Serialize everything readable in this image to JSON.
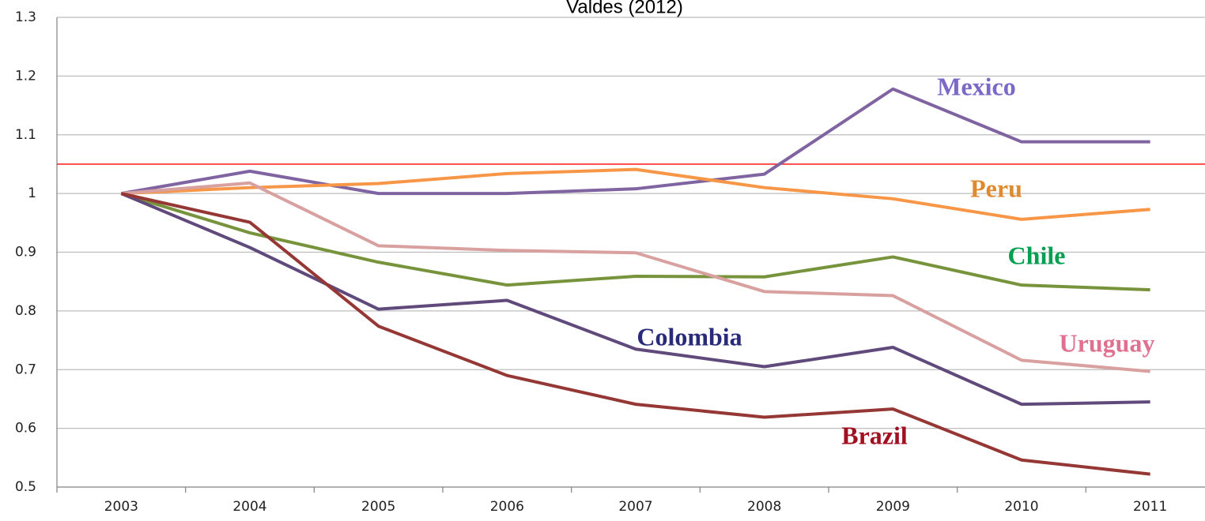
{
  "chart_data": {
    "type": "line",
    "title": "Valdes (2012)",
    "categories": [
      "2003",
      "2004",
      "2005",
      "2006",
      "2007",
      "2008",
      "2009",
      "2010",
      "2011"
    ],
    "ylim": [
      0.5,
      1.3
    ],
    "yticks": [
      0.5,
      0.6,
      0.7,
      0.8,
      0.9,
      1,
      1.1,
      1.2,
      1.3
    ],
    "grid": true,
    "reference_line": {
      "value": 1.05,
      "color": "#ff0000"
    },
    "series": [
      {
        "name": "Mexico",
        "color": "#8064a2",
        "label_color": "#7b68c8",
        "values": [
          1,
          1.038,
          1.0,
          1.0,
          1.008,
          1.033,
          1.178,
          1.088,
          1.088
        ]
      },
      {
        "name": "Peru",
        "color": "#f79646",
        "label_color": "#e08a30",
        "values": [
          1,
          1.01,
          1.017,
          1.034,
          1.041,
          1.01,
          0.991,
          0.956,
          0.973
        ]
      },
      {
        "name": "Chile",
        "color": "#77933c",
        "label_color": "#00a050",
        "values": [
          1,
          0.933,
          0.883,
          0.844,
          0.859,
          0.858,
          0.892,
          0.844,
          0.836
        ]
      },
      {
        "name": "Uruguay",
        "color": "#d9a0a0",
        "label_color": "#e07090",
        "values": [
          1,
          1.018,
          0.911,
          0.903,
          0.899,
          0.833,
          0.826,
          0.716,
          0.697
        ]
      },
      {
        "name": "Colombia",
        "color": "#604a7b",
        "label_color": "#2a2a7a",
        "values": [
          1,
          0.908,
          0.803,
          0.818,
          0.735,
          0.705,
          0.738,
          0.641,
          0.645
        ]
      },
      {
        "name": "Brazil",
        "color": "#953735",
        "label_color": "#a01020",
        "values": [
          1,
          0.951,
          0.774,
          0.69,
          0.641,
          0.619,
          0.633,
          0.546,
          0.522
        ]
      }
    ]
  }
}
